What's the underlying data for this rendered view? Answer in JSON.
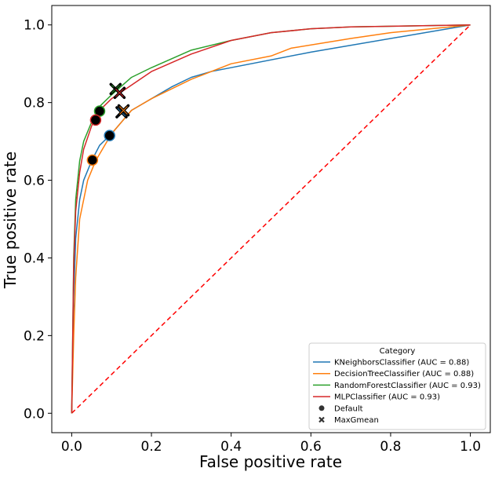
{
  "chart_data": {
    "type": "line",
    "xlabel": "False positive rate",
    "ylabel": "True positive rate",
    "xlim": [
      -0.05,
      1.05
    ],
    "ylim": [
      -0.05,
      1.05
    ],
    "xticks": [
      0.0,
      0.2,
      0.4,
      0.6,
      0.8,
      1.0
    ],
    "yticks": [
      0.0,
      0.2,
      0.4,
      0.6,
      0.8,
      1.0
    ],
    "xtick_labels": [
      "0.0",
      "0.2",
      "0.4",
      "0.6",
      "0.8",
      "1.0"
    ],
    "ytick_labels": [
      "0.0",
      "0.2",
      "0.4",
      "0.6",
      "0.8",
      "1.0"
    ],
    "grid": false,
    "legend": {
      "title": "Category",
      "placement": "lower-right",
      "entries": [
        {
          "label": "KNeighborsClassifier (AUC = 0.88)",
          "color": "#1f77b4",
          "marker": "line"
        },
        {
          "label": "DecisionTreeClassifier (AUC = 0.88)",
          "color": "#ff7f0e",
          "marker": "line"
        },
        {
          "label": "RandomForestClassifier (AUC = 0.93)",
          "color": "#2ca02c",
          "marker": "line"
        },
        {
          "label": "MLPClassifier (AUC = 0.93)",
          "color": "#d62728",
          "marker": "line"
        },
        {
          "label": "Default",
          "color": "#333333",
          "marker": "circle"
        },
        {
          "label": "MaxGmean",
          "color": "#333333",
          "marker": "x"
        }
      ]
    },
    "series": [
      {
        "name": "KNeighborsClassifier (AUC = 0.88)",
        "color": "#1f77b4",
        "x": [
          0.0,
          0.005,
          0.01,
          0.02,
          0.03,
          0.05,
          0.07,
          0.1,
          0.15,
          0.2,
          0.25,
          0.3,
          0.35,
          0.6,
          1.0
        ],
        "y": [
          0.0,
          0.3,
          0.45,
          0.55,
          0.6,
          0.65,
          0.69,
          0.72,
          0.78,
          0.81,
          0.84,
          0.865,
          0.88,
          0.93,
          1.0
        ]
      },
      {
        "name": "DecisionTreeClassifier (AUC = 0.88)",
        "color": "#ff7f0e",
        "x": [
          0.0,
          0.005,
          0.01,
          0.02,
          0.04,
          0.06,
          0.1,
          0.15,
          0.2,
          0.3,
          0.4,
          0.5,
          0.55,
          0.7,
          0.8,
          1.0
        ],
        "y": [
          0.0,
          0.2,
          0.35,
          0.5,
          0.6,
          0.65,
          0.72,
          0.78,
          0.81,
          0.86,
          0.9,
          0.92,
          0.94,
          0.965,
          0.98,
          1.0
        ]
      },
      {
        "name": "RandomForestClassifier (AUC = 0.93)",
        "color": "#2ca02c",
        "x": [
          0.0,
          0.005,
          0.01,
          0.02,
          0.03,
          0.05,
          0.07,
          0.1,
          0.15,
          0.2,
          0.3,
          0.4,
          0.5,
          0.6,
          0.7,
          1.0
        ],
        "y": [
          0.0,
          0.4,
          0.55,
          0.65,
          0.7,
          0.75,
          0.79,
          0.82,
          0.865,
          0.89,
          0.935,
          0.96,
          0.98,
          0.99,
          0.995,
          1.0
        ]
      },
      {
        "name": "MLPClassifier (AUC = 0.93)",
        "color": "#d62728",
        "x": [
          0.0,
          0.005,
          0.01,
          0.02,
          0.03,
          0.05,
          0.07,
          0.1,
          0.15,
          0.2,
          0.3,
          0.4,
          0.5,
          0.6,
          0.7,
          1.0
        ],
        "y": [
          0.0,
          0.38,
          0.52,
          0.62,
          0.68,
          0.74,
          0.78,
          0.81,
          0.845,
          0.88,
          0.925,
          0.96,
          0.98,
          0.99,
          0.995,
          1.0
        ]
      }
    ],
    "reference_line": {
      "x": [
        0.0,
        1.0
      ],
      "y": [
        0.0,
        1.0
      ],
      "color": "#ff0000",
      "style": "dashed"
    },
    "points": [
      {
        "category": "Default",
        "series": "KNeighborsClassifier (AUC = 0.88)",
        "x": 0.095,
        "y": 0.715
      },
      {
        "category": "Default",
        "series": "DecisionTreeClassifier (AUC = 0.88)",
        "x": 0.052,
        "y": 0.652
      },
      {
        "category": "Default",
        "series": "RandomForestClassifier (AUC = 0.93)",
        "x": 0.07,
        "y": 0.778
      },
      {
        "category": "Default",
        "series": "MLPClassifier (AUC = 0.93)",
        "x": 0.06,
        "y": 0.755
      },
      {
        "category": "MaxGmean",
        "series": "KNeighborsClassifier (AUC = 0.88)",
        "x": 0.125,
        "y": 0.775
      },
      {
        "category": "MaxGmean",
        "series": "DecisionTreeClassifier (AUC = 0.88)",
        "x": 0.13,
        "y": 0.78
      },
      {
        "category": "MaxGmean",
        "series": "RandomForestClassifier (AUC = 0.93)",
        "x": 0.11,
        "y": 0.835
      },
      {
        "category": "MaxGmean",
        "series": "MLPClassifier (AUC = 0.93)",
        "x": 0.12,
        "y": 0.825
      }
    ]
  }
}
